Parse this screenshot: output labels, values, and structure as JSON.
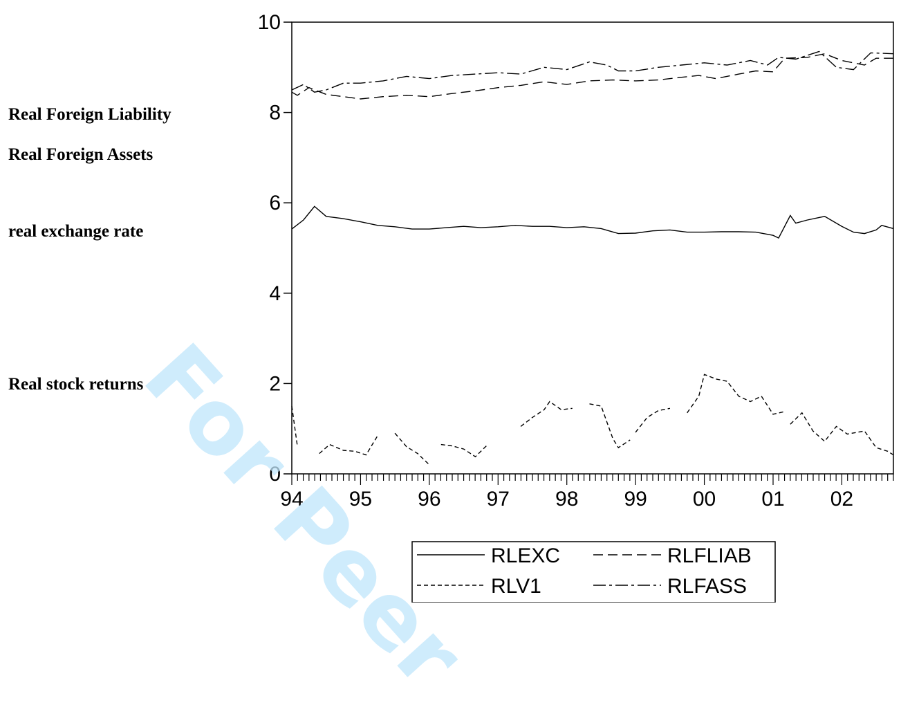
{
  "side_labels": {
    "liability": "Real Foreign Liability",
    "assets": "Real Foreign Assets",
    "exchange": "real exchange rate",
    "stock": "Real stock returns"
  },
  "watermark": "For Peer",
  "chart_data": {
    "type": "line",
    "x_start": 1994.0,
    "x_end": 2002.75,
    "frequency": "monthly",
    "ylim": [
      0,
      10
    ],
    "y_ticks": [
      0,
      2,
      4,
      6,
      8,
      10
    ],
    "y_tick_labels": [
      "0",
      "2",
      "4",
      "6",
      "8",
      "10"
    ],
    "x_ticks": [
      1994,
      1995,
      1996,
      1997,
      1998,
      1999,
      2000,
      2001,
      2002
    ],
    "x_tick_labels": [
      "94",
      "95",
      "96",
      "97",
      "98",
      "99",
      "00",
      "01",
      "02"
    ],
    "grid": false,
    "legend_position": "bottom-right",
    "series": [
      {
        "name": "RLEXC",
        "style": "solid",
        "points": [
          [
            1994.0,
            5.42
          ],
          [
            1994.17,
            5.62
          ],
          [
            1994.33,
            5.92
          ],
          [
            1994.5,
            5.7
          ],
          [
            1994.75,
            5.65
          ],
          [
            1995.0,
            5.58
          ],
          [
            1995.25,
            5.5
          ],
          [
            1995.5,
            5.47
          ],
          [
            1995.75,
            5.42
          ],
          [
            1996.0,
            5.42
          ],
          [
            1996.25,
            5.45
          ],
          [
            1996.5,
            5.48
          ],
          [
            1996.75,
            5.45
          ],
          [
            1997.0,
            5.47
          ],
          [
            1997.25,
            5.5
          ],
          [
            1997.5,
            5.48
          ],
          [
            1997.75,
            5.48
          ],
          [
            1998.0,
            5.45
          ],
          [
            1998.25,
            5.47
          ],
          [
            1998.5,
            5.43
          ],
          [
            1998.75,
            5.32
          ],
          [
            1999.0,
            5.33
          ],
          [
            1999.25,
            5.38
          ],
          [
            1999.5,
            5.4
          ],
          [
            1999.75,
            5.35
          ],
          [
            2000.0,
            5.35
          ],
          [
            2000.25,
            5.36
          ],
          [
            2000.5,
            5.36
          ],
          [
            2000.75,
            5.35
          ],
          [
            2001.0,
            5.28
          ],
          [
            2001.08,
            5.22
          ],
          [
            2001.25,
            5.72
          ],
          [
            2001.33,
            5.55
          ],
          [
            2001.5,
            5.62
          ],
          [
            2001.75,
            5.7
          ],
          [
            2002.0,
            5.48
          ],
          [
            2002.17,
            5.35
          ],
          [
            2002.33,
            5.32
          ],
          [
            2002.5,
            5.4
          ],
          [
            2002.58,
            5.5
          ],
          [
            2002.75,
            5.43
          ]
        ]
      },
      {
        "name": "RLV1",
        "style": "short-dash",
        "segments": [
          [
            [
              1994.0,
              1.5
            ],
            [
              1994.08,
              0.62
            ]
          ],
          [
            [
              1994.4,
              0.45
            ],
            [
              1994.55,
              0.65
            ],
            [
              1994.75,
              0.52
            ],
            [
              1994.92,
              0.5
            ],
            [
              1995.08,
              0.42
            ],
            [
              1995.25,
              0.85
            ]
          ],
          [
            [
              1995.5,
              0.9
            ],
            [
              1995.67,
              0.6
            ],
            [
              1995.83,
              0.45
            ],
            [
              1996.0,
              0.2
            ]
          ],
          [
            [
              1996.17,
              0.65
            ],
            [
              1996.33,
              0.62
            ],
            [
              1996.5,
              0.55
            ],
            [
              1996.67,
              0.38
            ],
            [
              1996.83,
              0.62
            ]
          ],
          [
            [
              1997.33,
              1.05
            ],
            [
              1997.5,
              1.25
            ],
            [
              1997.67,
              1.42
            ],
            [
              1997.75,
              1.6
            ],
            [
              1997.92,
              1.42
            ],
            [
              1998.08,
              1.45
            ]
          ],
          [
            [
              1998.33,
              1.55
            ],
            [
              1998.5,
              1.5
            ],
            [
              1998.67,
              0.78
            ],
            [
              1998.75,
              0.58
            ],
            [
              1998.92,
              0.75
            ]
          ],
          [
            [
              1999.0,
              0.92
            ],
            [
              1999.17,
              1.25
            ],
            [
              1999.33,
              1.4
            ],
            [
              1999.5,
              1.45
            ]
          ],
          [
            [
              1999.75,
              1.35
            ],
            [
              1999.92,
              1.72
            ],
            [
              2000.0,
              2.2
            ],
            [
              2000.17,
              2.1
            ],
            [
              2000.33,
              2.05
            ],
            [
              2000.5,
              1.72
            ],
            [
              2000.67,
              1.6
            ],
            [
              2000.83,
              1.72
            ],
            [
              2001.0,
              1.32
            ],
            [
              2001.17,
              1.38
            ]
          ],
          [
            [
              2001.25,
              1.1
            ],
            [
              2001.42,
              1.35
            ],
            [
              2001.58,
              0.95
            ],
            [
              2001.75,
              0.72
            ],
            [
              2001.92,
              1.05
            ],
            [
              2002.08,
              0.88
            ],
            [
              2002.33,
              0.95
            ],
            [
              2002.5,
              0.58
            ],
            [
              2002.67,
              0.5
            ],
            [
              2002.75,
              0.42
            ]
          ]
        ]
      },
      {
        "name": "RLFLIAB",
        "style": "long-dash",
        "points": [
          [
            1994.0,
            8.45
          ],
          [
            1994.08,
            8.38
          ],
          [
            1994.25,
            8.55
          ],
          [
            1994.5,
            8.4
          ],
          [
            1994.75,
            8.35
          ],
          [
            1995.0,
            8.3
          ],
          [
            1995.33,
            8.35
          ],
          [
            1995.67,
            8.38
          ],
          [
            1996.0,
            8.35
          ],
          [
            1996.33,
            8.42
          ],
          [
            1996.67,
            8.48
          ],
          [
            1997.0,
            8.55
          ],
          [
            1997.33,
            8.6
          ],
          [
            1997.67,
            8.68
          ],
          [
            1998.0,
            8.62
          ],
          [
            1998.33,
            8.7
          ],
          [
            1998.67,
            8.72
          ],
          [
            1999.0,
            8.7
          ],
          [
            1999.33,
            8.72
          ],
          [
            1999.67,
            8.78
          ],
          [
            1999.92,
            8.82
          ],
          [
            2000.17,
            8.75
          ],
          [
            2000.5,
            8.85
          ],
          [
            2000.75,
            8.92
          ],
          [
            2001.0,
            8.9
          ],
          [
            2001.17,
            9.2
          ],
          [
            2001.5,
            9.22
          ],
          [
            2001.75,
            9.3
          ],
          [
            2002.0,
            9.15
          ],
          [
            2002.33,
            9.05
          ],
          [
            2002.5,
            9.2
          ],
          [
            2002.75,
            9.2
          ]
        ]
      },
      {
        "name": "RLFASS",
        "style": "dash-dot",
        "points": [
          [
            1994.0,
            8.5
          ],
          [
            1994.17,
            8.62
          ],
          [
            1994.33,
            8.45
          ],
          [
            1994.5,
            8.5
          ],
          [
            1994.75,
            8.65
          ],
          [
            1995.0,
            8.65
          ],
          [
            1995.33,
            8.7
          ],
          [
            1995.67,
            8.8
          ],
          [
            1996.0,
            8.75
          ],
          [
            1996.33,
            8.82
          ],
          [
            1996.67,
            8.85
          ],
          [
            1997.0,
            8.88
          ],
          [
            1997.33,
            8.85
          ],
          [
            1997.67,
            9.0
          ],
          [
            1998.0,
            8.95
          ],
          [
            1998.33,
            9.12
          ],
          [
            1998.58,
            9.05
          ],
          [
            1998.75,
            8.92
          ],
          [
            1999.0,
            8.92
          ],
          [
            1999.33,
            9.0
          ],
          [
            1999.67,
            9.05
          ],
          [
            2000.0,
            9.1
          ],
          [
            2000.33,
            9.05
          ],
          [
            2000.67,
            9.15
          ],
          [
            2000.92,
            9.05
          ],
          [
            2001.08,
            9.22
          ],
          [
            2001.33,
            9.18
          ],
          [
            2001.67,
            9.35
          ],
          [
            2001.92,
            9.0
          ],
          [
            2002.17,
            8.95
          ],
          [
            2002.42,
            9.32
          ],
          [
            2002.75,
            9.3
          ]
        ]
      }
    ]
  }
}
